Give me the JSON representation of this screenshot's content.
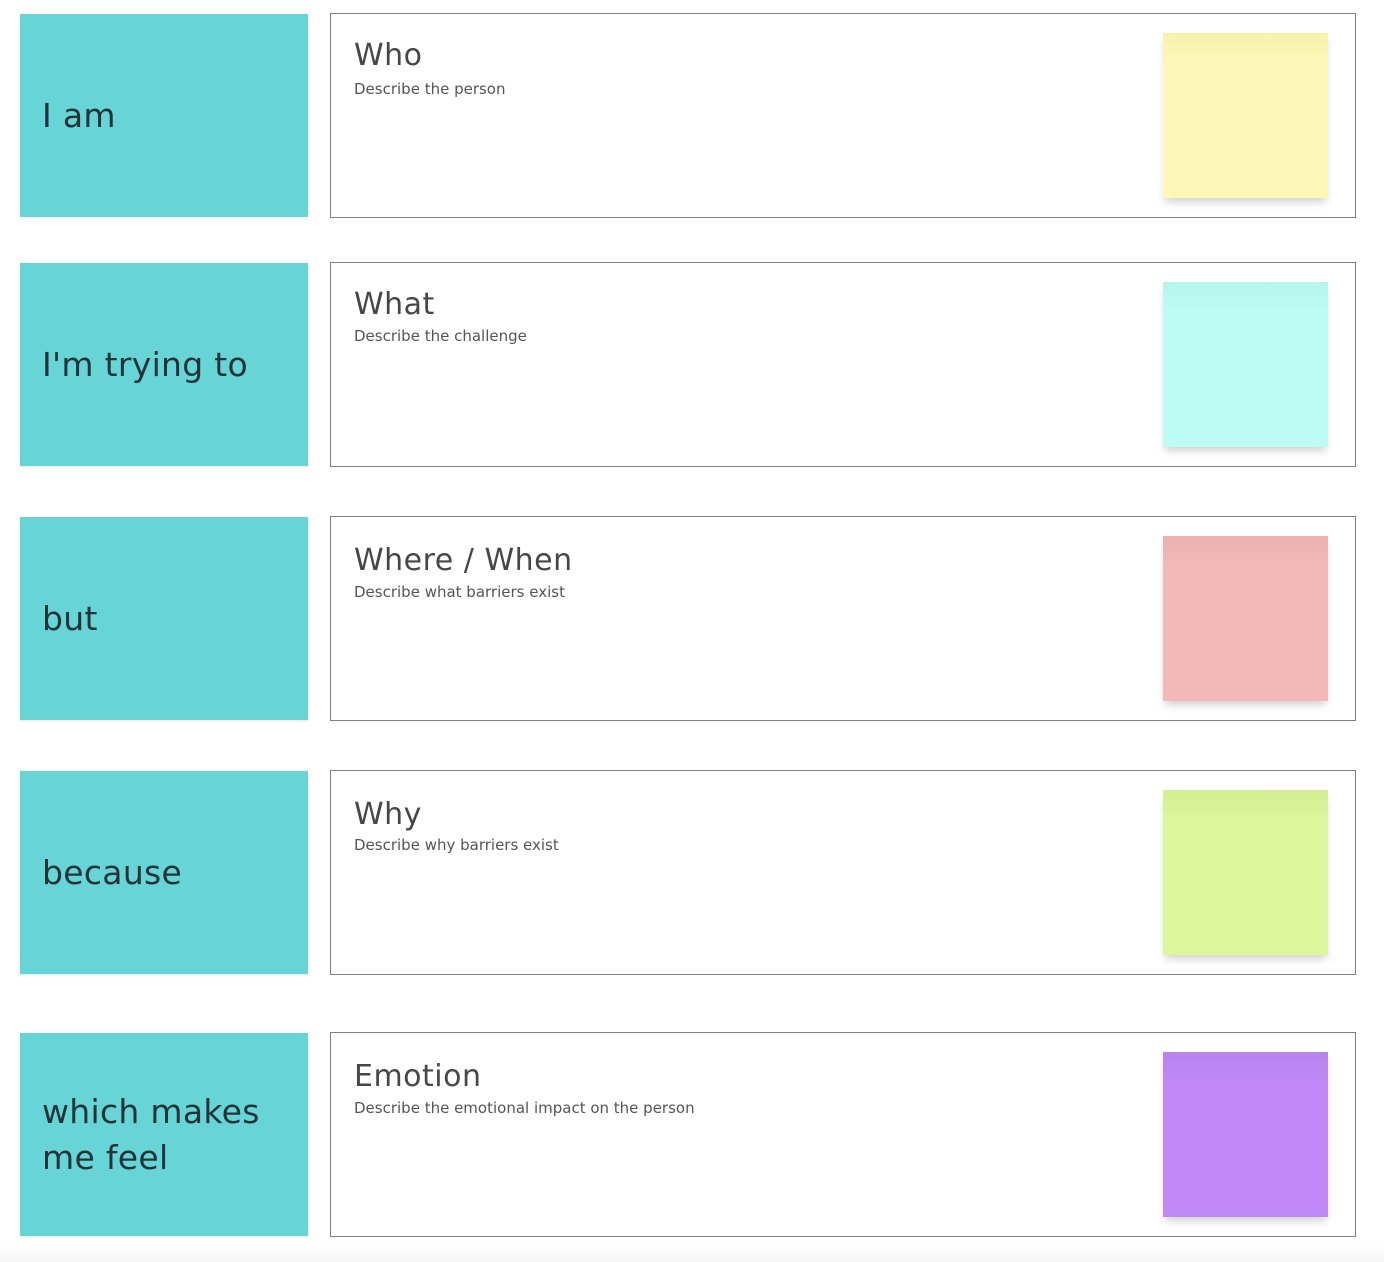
{
  "rows": [
    {
      "label": "I am",
      "title": "Who",
      "description": "Describe the person",
      "sticky_color": "#fdf8b8",
      "sticky_top_color": "#f8f2ad"
    },
    {
      "label": "I'm trying to",
      "title": "What",
      "description": "Describe the challenge",
      "sticky_color": "#bcfcf5",
      "sticky_top_color": "#b5f5ee"
    },
    {
      "label": "but",
      "title": "Where / When",
      "description": "Describe what barriers exist",
      "sticky_color": "#f3b8b8",
      "sticky_top_color": "#ebb1b1"
    },
    {
      "label": "because",
      "title": "Why",
      "description": "Describe why barriers exist",
      "sticky_color": "#dcf79b",
      "sticky_top_color": "#d4ef93"
    },
    {
      "label": "which makes me feel",
      "title": "Emotion",
      "description": "Describe the emotional impact on the person",
      "sticky_color": "#bf88f6",
      "sticky_top_color": "#b884ee"
    }
  ],
  "colors": {
    "label_card": "#67d4d6",
    "frame_border": "#808080",
    "title_text": "#474747"
  }
}
